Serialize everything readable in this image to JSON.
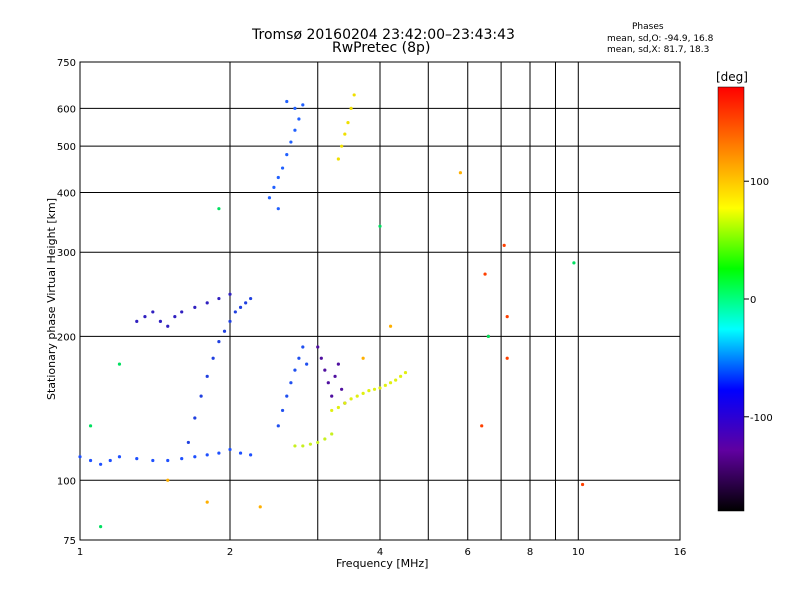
{
  "header": {
    "title_line1": "Tromsø 20160204 23:42:00–23:43:43",
    "title_line2": "RwPretec (8p)"
  },
  "legend": {
    "title": "Phases",
    "line1": "mean, sd,O: -94.9, 16.8",
    "line2": "mean, sd,X:  81.7, 18.3"
  },
  "chart_data": {
    "type": "scatter",
    "title": "Tromsø 20160204 23:42:00–23:43:43",
    "subtitle": "RwPretec (8p)",
    "xlabel": "Frequency [MHz]",
    "ylabel": "Stationary phase Virtual Height [km]",
    "x_scale": "log",
    "y_scale": "log",
    "xlim": [
      1,
      16
    ],
    "ylim": [
      75,
      750
    ],
    "x_ticks": [
      1,
      2,
      4,
      6,
      8,
      10,
      16
    ],
    "x_grid": [
      2,
      3,
      4,
      5,
      6,
      7,
      8,
      9,
      10,
      16
    ],
    "y_ticks": [
      75,
      100,
      200,
      300,
      400,
      500,
      600,
      750
    ],
    "grid": true,
    "colorbar": {
      "label": "[deg]",
      "range": [
        -180,
        180
      ],
      "ticks": [
        100,
        0,
        -100
      ],
      "colors": [
        "#ff0000",
        "#ff8000",
        "#ffff00",
        "#00ff00",
        "#00ffff",
        "#0000ff",
        "#6000a0",
        "#000000"
      ]
    },
    "series": [
      {
        "phase": -100,
        "color": "#1e50ff",
        "x": [
          1.0,
          1.05,
          1.1,
          1.15,
          1.2,
          1.3,
          1.4,
          1.5,
          1.6,
          1.7,
          1.8,
          1.9,
          2.0,
          2.1,
          2.2
        ],
        "y": [
          112,
          110,
          108,
          110,
          112,
          111,
          110,
          110,
          111,
          112,
          113,
          114,
          116,
          114,
          113
        ]
      },
      {
        "phase": -100,
        "color": "#2060ff",
        "x": [
          2.4,
          2.45,
          2.5,
          2.55,
          2.6,
          2.65,
          2.7,
          2.75,
          2.8,
          2.5,
          2.6,
          2.7
        ],
        "y": [
          390,
          410,
          430,
          450,
          480,
          510,
          540,
          570,
          610,
          370,
          620,
          600
        ]
      },
      {
        "phase": -110,
        "color": "#2040e0",
        "x": [
          1.65,
          1.7,
          1.75,
          1.8,
          1.85,
          1.9,
          1.95,
          2.0,
          2.05,
          2.1,
          2.15,
          2.2
        ],
        "y": [
          120,
          135,
          150,
          165,
          180,
          195,
          205,
          215,
          225,
          230,
          235,
          240
        ]
      },
      {
        "phase": -110,
        "color": "#2050f0",
        "x": [
          2.5,
          2.55,
          2.6,
          2.65,
          2.7,
          2.75,
          2.8,
          2.85
        ],
        "y": [
          130,
          140,
          150,
          160,
          170,
          180,
          190,
          175
        ]
      },
      {
        "phase": -120,
        "color": "#3020c0",
        "x": [
          1.3,
          1.35,
          1.4,
          1.45,
          1.5,
          1.55,
          1.6,
          1.7,
          1.8,
          1.9,
          2.0
        ],
        "y": [
          215,
          220,
          225,
          215,
          210,
          220,
          225,
          230,
          235,
          240,
          245
        ]
      },
      {
        "phase": -130,
        "color": "#5010a0",
        "x": [
          3.0,
          3.05,
          3.1,
          3.15,
          3.2,
          3.25,
          3.3,
          3.35,
          3.4
        ],
        "y": [
          190,
          180,
          170,
          160,
          150,
          165,
          175,
          155,
          145
        ]
      },
      {
        "phase": 100,
        "color": "#e0f010",
        "x": [
          3.2,
          3.3,
          3.4,
          3.5,
          3.6,
          3.7,
          3.8,
          3.9,
          4.0,
          4.1,
          4.2,
          4.3,
          4.4,
          4.5
        ],
        "y": [
          140,
          142,
          145,
          148,
          150,
          152,
          154,
          155,
          156,
          158,
          160,
          162,
          165,
          168
        ]
      },
      {
        "phase": 100,
        "color": "#f0e000",
        "x": [
          3.3,
          3.35,
          3.4,
          3.45,
          3.5,
          3.55
        ],
        "y": [
          470,
          500,
          530,
          560,
          600,
          640
        ]
      },
      {
        "phase": 100,
        "color": "#c8f020",
        "x": [
          2.7,
          2.8,
          2.9,
          3.0,
          3.1,
          3.2
        ],
        "y": [
          118,
          118,
          119,
          120,
          122,
          125
        ]
      },
      {
        "phase": 90,
        "color": "#ffb000",
        "x": [
          1.5,
          1.8,
          2.3,
          3.7,
          4.2,
          5.8
        ],
        "y": [
          100,
          90,
          88,
          180,
          210,
          440
        ]
      },
      {
        "phase": 160,
        "color": "#ff4000",
        "x": [
          6.5,
          7.1,
          7.2,
          6.6,
          7.2,
          6.4,
          10.2
        ],
        "y": [
          270,
          310,
          220,
          200,
          180,
          130,
          98
        ]
      },
      {
        "phase": 0,
        "color": "#00e060",
        "x": [
          1.1,
          1.2,
          1.9,
          4.0,
          9.8,
          6.6,
          1.05
        ],
        "y": [
          80,
          175,
          370,
          340,
          285,
          200,
          130
        ]
      }
    ]
  }
}
